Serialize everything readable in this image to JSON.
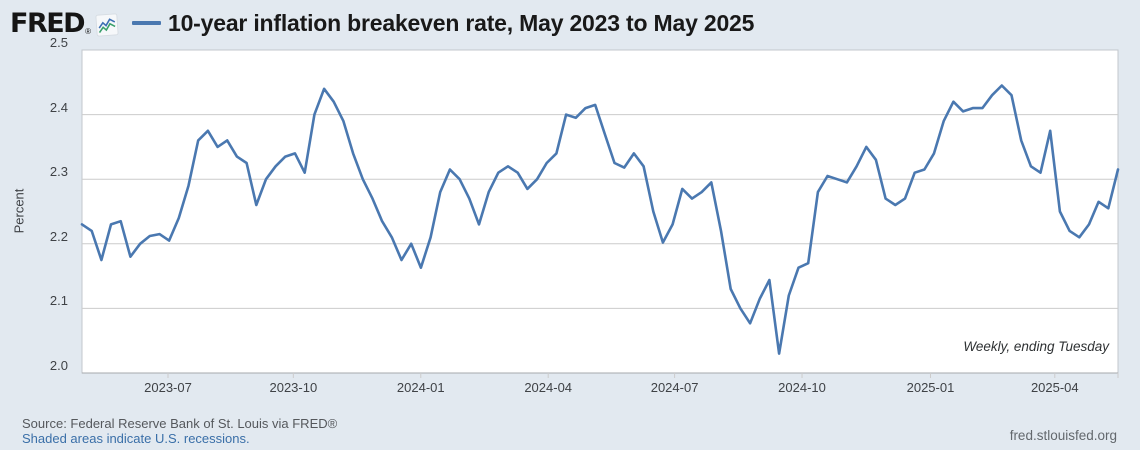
{
  "header": {
    "logo_text": "FRED",
    "logo_reg": "®",
    "title": "10-year inflation breakeven rate, May 2023 to May 2025"
  },
  "chart": {
    "y_axis_title": "Percent",
    "annotation": "Weekly, ending Tuesday"
  },
  "footer": {
    "source": "Source: Federal Reserve Bank of St. Louis via FRED®",
    "recession_note": "Shaded areas indicate U.S. recessions.",
    "site": "fred.stlouisfed.org"
  },
  "colors": {
    "background": "#e2e9f0",
    "plot_background": "#ffffff",
    "line": "#4a78b0",
    "gridline": "#cccccc",
    "plot_border": "#c3c7cc",
    "axis_line": "#a6a9ad",
    "logo_icon_blue": "#3d6fb3",
    "logo_icon_green": "#3aa06b",
    "link_blue": "#3a6fa8"
  },
  "chart_data": {
    "type": "line",
    "title": "10-year inflation breakeven rate, May 2023 to May 2025",
    "xlabel": "",
    "ylabel": "Percent",
    "ylim": [
      2.0,
      2.5
    ],
    "y_ticks": [
      2.5,
      2.4,
      2.3,
      2.2,
      2.1,
      2.0
    ],
    "x_ticks": [
      {
        "label": "2023-07",
        "pos": 0.083
      },
      {
        "label": "2023-10",
        "pos": 0.204
      },
      {
        "label": "2024-01",
        "pos": 0.327
      },
      {
        "label": "2024-04",
        "pos": 0.45
      },
      {
        "label": "2024-07",
        "pos": 0.572
      },
      {
        "label": "2024-10",
        "pos": 0.695
      },
      {
        "label": "2025-01",
        "pos": 0.819
      },
      {
        "label": "2025-04",
        "pos": 0.939
      },
      {
        "label": "",
        "pos": 1.0
      }
    ],
    "x_range": "May 2023 to May 2025, weekly (ending Tuesday)",
    "grid": true,
    "legend_position": "title-inline",
    "series": [
      {
        "name": "10-year inflation breakeven rate",
        "color": "#4a78b0",
        "values": [
          2.23,
          2.22,
          2.175,
          2.23,
          2.235,
          2.18,
          2.2,
          2.212,
          2.215,
          2.205,
          2.24,
          2.29,
          2.36,
          2.375,
          2.35,
          2.36,
          2.335,
          2.325,
          2.26,
          2.3,
          2.32,
          2.335,
          2.34,
          2.31,
          2.4,
          2.44,
          2.42,
          2.39,
          2.34,
          2.3,
          2.27,
          2.235,
          2.21,
          2.175,
          2.2,
          2.163,
          2.21,
          2.28,
          2.315,
          2.3,
          2.27,
          2.23,
          2.28,
          2.31,
          2.32,
          2.31,
          2.285,
          2.3,
          2.325,
          2.34,
          2.4,
          2.395,
          2.41,
          2.415,
          2.37,
          2.325,
          2.318,
          2.34,
          2.32,
          2.25,
          2.202,
          2.23,
          2.285,
          2.27,
          2.28,
          2.295,
          2.22,
          2.13,
          2.1,
          2.077,
          2.115,
          2.144,
          2.03,
          2.12,
          2.163,
          2.17,
          2.28,
          2.305,
          2.3,
          2.295,
          2.32,
          2.35,
          2.33,
          2.27,
          2.26,
          2.27,
          2.31,
          2.315,
          2.34,
          2.39,
          2.42,
          2.405,
          2.41,
          2.41,
          2.43,
          2.445,
          2.43,
          2.36,
          2.32,
          2.31,
          2.375,
          2.25,
          2.22,
          2.21,
          2.23,
          2.265,
          2.255,
          2.315
        ]
      }
    ]
  }
}
